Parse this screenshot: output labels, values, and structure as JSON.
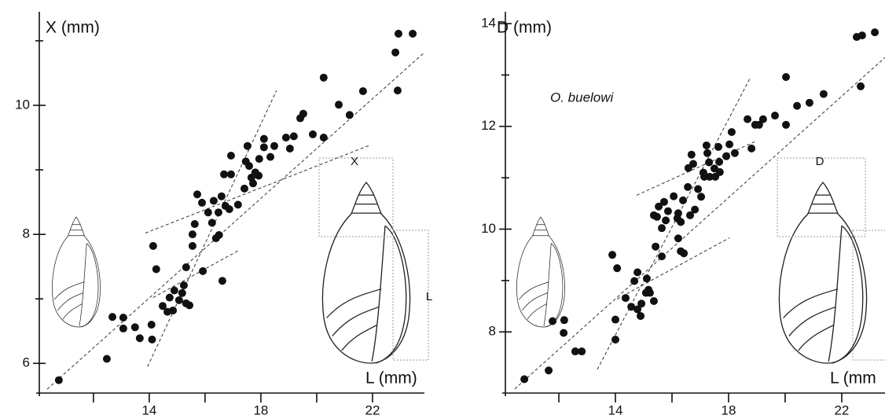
{
  "chart_data": [
    {
      "type": "scatter",
      "y_label": "X (mm)",
      "x_label": "L (mm)",
      "annotations": [
        "X",
        "L"
      ],
      "color": "#111111",
      "xlim": [
        10.06,
        23.86
      ],
      "ylim": [
        5.54,
        11.45
      ],
      "xticks": [
        14,
        18,
        22
      ],
      "minor_xticks": [
        12,
        16,
        20
      ],
      "yticks": [
        6,
        8,
        10
      ],
      "minor_yticks": [
        7,
        9,
        11
      ],
      "x": [
        10.76,
        12.48,
        12.68,
        13.07,
        13.07,
        13.49,
        13.66,
        14.08,
        14.1,
        14.14,
        14.25,
        14.48,
        14.65,
        14.73,
        14.85,
        14.9,
        15.07,
        15.18,
        15.24,
        15.32,
        15.44,
        15.32,
        15.55,
        15.55,
        15.63,
        15.72,
        15.89,
        15.92,
        16.11,
        16.25,
        16.39,
        16.5,
        16.31,
        16.48,
        16.62,
        16.68,
        16.93,
        16.93,
        16.59,
        16.73,
        16.87,
        17.18,
        17.41,
        17.52,
        17.46,
        17.58,
        17.66,
        17.72,
        17.8,
        17.94,
        17.92,
        18.11,
        18.11,
        18.34,
        18.48,
        18.9,
        19.04,
        19.18,
        19.41,
        19.52,
        19.86,
        20.25,
        20.25,
        20.79,
        21.18,
        21.66,
        22.82,
        22.93,
        23.44,
        22.9
      ],
      "values": [
        5.74,
        6.07,
        6.72,
        6.71,
        6.54,
        6.56,
        6.39,
        6.6,
        6.37,
        7.82,
        7.46,
        6.89,
        6.8,
        7.02,
        6.82,
        7.13,
        6.98,
        7.09,
        7.21,
        6.93,
        6.9,
        7.49,
        7.82,
        8.0,
        8.16,
        8.62,
        8.49,
        7.43,
        8.34,
        8.18,
        7.94,
        7.99,
        8.52,
        8.34,
        7.28,
        8.93,
        8.93,
        9.22,
        8.59,
        8.44,
        8.39,
        8.46,
        8.71,
        9.37,
        9.13,
        9.06,
        8.88,
        8.79,
        8.96,
        9.17,
        8.91,
        9.48,
        9.35,
        9.2,
        9.37,
        9.5,
        9.33,
        9.52,
        9.8,
        9.87,
        9.55,
        9.5,
        10.43,
        10.01,
        9.85,
        10.22,
        10.82,
        11.11,
        11.11,
        10.23
      ],
      "fit_lines": [
        {
          "x": [
            10.34,
            23.86
          ],
          "y": [
            5.6,
            10.82
          ]
        },
        {
          "x": [
            13.86,
            21.89
          ],
          "y": [
            8.02,
            9.38
          ]
        },
        {
          "x": [
            13.94,
            18.56
          ],
          "y": [
            5.95,
            10.23
          ]
        },
        {
          "x": [
            14.14,
            17.24
          ],
          "y": [
            7.02,
            7.76
          ]
        }
      ]
    },
    {
      "type": "scatter",
      "y_label": "D (mm)",
      "x_label": "L (mm",
      "title": "O. buelowi",
      "annotations": [
        "D"
      ],
      "color": "#111111",
      "xlim": [
        10.11,
        23.53
      ],
      "ylim": [
        6.81,
        14.23
      ],
      "xticks": [
        14,
        18,
        22
      ],
      "minor_xticks": [
        12,
        16,
        20
      ],
      "yticks": [
        8,
        10,
        12,
        14
      ],
      "minor_yticks": [
        9,
        11,
        13
      ],
      "x": [
        10.78,
        11.64,
        11.78,
        12.19,
        12.17,
        12.58,
        12.81,
        13.89,
        14.0,
        14.0,
        14.06,
        14.36,
        14.56,
        14.67,
        14.78,
        14.78,
        14.89,
        14.92,
        15.08,
        15.11,
        15.17,
        15.22,
        15.36,
        15.42,
        15.36,
        15.47,
        15.53,
        15.72,
        15.64,
        15.64,
        15.78,
        15.86,
        16.06,
        16.19,
        16.22,
        16.31,
        16.42,
        16.22,
        16.31,
        16.39,
        16.56,
        16.58,
        16.75,
        16.69,
        16.92,
        17.11,
        16.81,
        17.03,
        16.64,
        17.22,
        17.25,
        17.31,
        17.14,
        17.33,
        17.5,
        17.53,
        17.69,
        17.67,
        17.64,
        17.92,
        18.03,
        18.22,
        18.11,
        18.67,
        18.81,
        18.94,
        19.08,
        19.22,
        19.64,
        20.03,
        20.03,
        20.42,
        20.86,
        21.36,
        22.67,
        22.53,
        22.72,
        23.17
      ],
      "values": [
        7.08,
        7.25,
        8.21,
        8.23,
        7.98,
        7.62,
        7.62,
        9.5,
        8.24,
        7.85,
        9.24,
        8.66,
        8.49,
        8.99,
        9.16,
        8.44,
        8.31,
        8.55,
        8.76,
        9.04,
        8.82,
        8.76,
        8.6,
        9.66,
        10.27,
        10.24,
        10.44,
        10.53,
        10.02,
        9.47,
        10.17,
        10.35,
        10.64,
        10.21,
        9.82,
        9.57,
        9.53,
        10.31,
        10.14,
        10.56,
        10.82,
        11.19,
        11.27,
        11.45,
        10.78,
        11.1,
        10.38,
        10.63,
        10.27,
        11.63,
        11.48,
        11.3,
        11.02,
        11.02,
        11.18,
        11.02,
        11.11,
        11.31,
        11.6,
        11.42,
        11.65,
        11.48,
        11.89,
        12.14,
        11.57,
        12.03,
        12.03,
        12.14,
        12.21,
        12.96,
        12.03,
        12.4,
        12.46,
        12.63,
        12.78,
        13.74,
        13.77,
        13.83
      ],
      "fit_lines": [
        {
          "x": [
            10.44,
            23.53
          ],
          "y": [
            6.89,
            13.34
          ]
        },
        {
          "x": [
            14.75,
            18.92
          ],
          "y": [
            10.66,
            11.7
          ]
        },
        {
          "x": [
            13.36,
            18.78
          ],
          "y": [
            7.27,
            12.96
          ]
        },
        {
          "x": [
            14.06,
            18.03
          ],
          "y": [
            8.64,
            9.83
          ]
        }
      ]
    }
  ]
}
